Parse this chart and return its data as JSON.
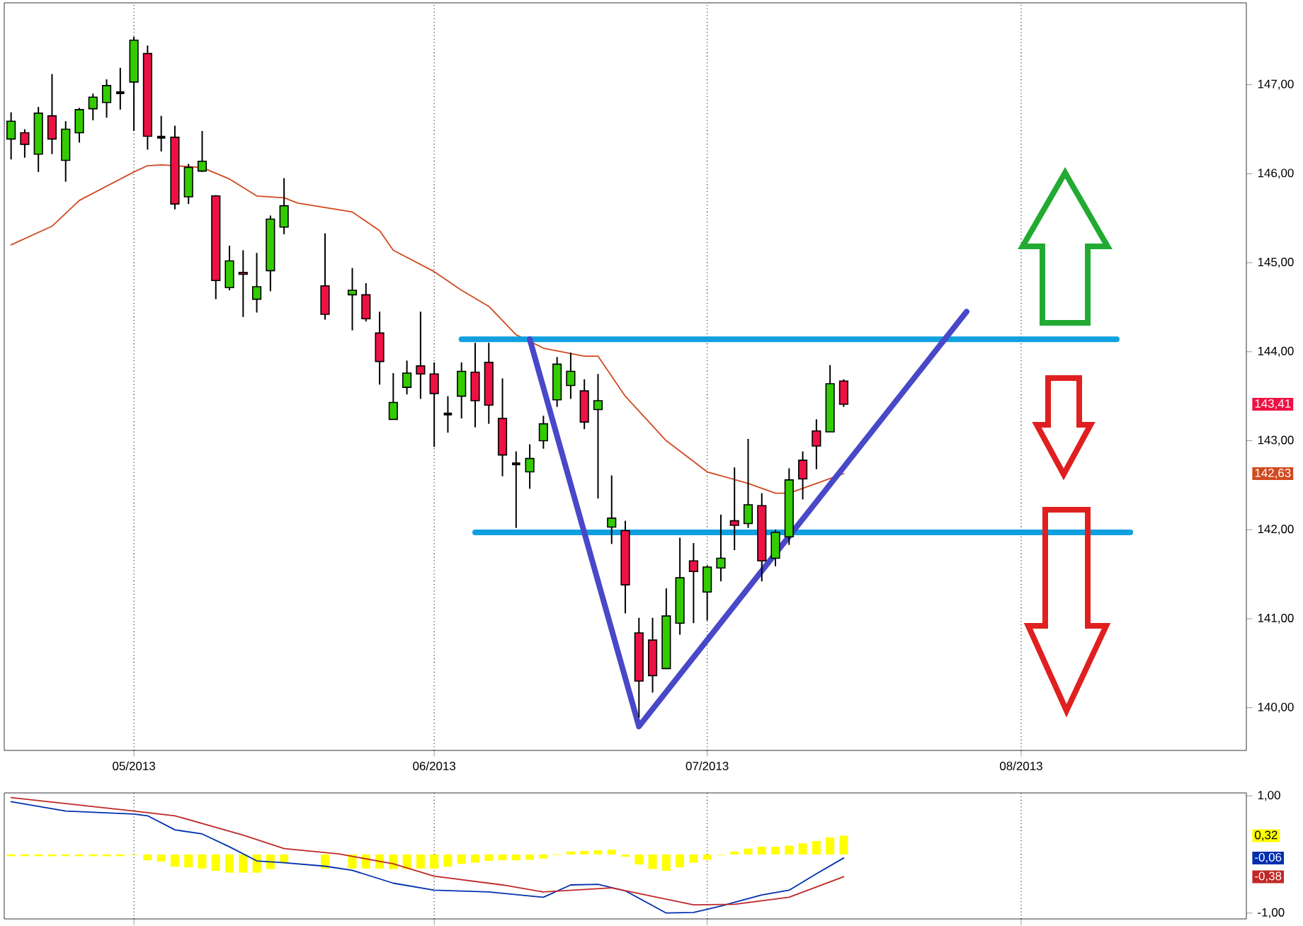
{
  "chart_data": [
    {
      "type": "candlestick",
      "grid": "x",
      "categories": [
        null,
        null,
        null,
        null,
        null,
        null,
        null,
        null,
        null,
        "05/2013",
        null,
        null,
        null,
        null,
        null,
        null,
        null,
        null,
        null,
        null,
        null,
        null,
        null,
        null,
        null,
        null,
        null,
        null,
        null,
        null,
        null,
        "06/2013",
        null,
        null,
        null,
        null,
        null,
        null,
        null,
        null,
        null,
        null,
        null,
        null,
        null,
        null,
        null,
        null,
        null,
        null,
        null,
        "07/2013",
        null,
        null,
        null,
        null,
        null,
        null,
        null,
        null,
        null,
        null,
        null,
        null,
        null,
        null,
        null,
        null,
        null,
        null,
        null,
        null,
        null,
        null,
        "08/2013",
        null,
        null,
        null,
        null,
        null,
        null,
        null,
        null,
        null,
        null,
        null,
        null,
        null,
        null,
        null,
        null
      ],
      "ohlc": [
        [
          146.39,
          146.69,
          146.16,
          146.59
        ],
        [
          146.46,
          146.5,
          146.18,
          146.33
        ],
        [
          146.22,
          146.75,
          146.02,
          146.68
        ],
        [
          146.65,
          147.12,
          146.22,
          146.39
        ],
        [
          146.15,
          146.59,
          145.91,
          146.5
        ],
        [
          146.46,
          146.74,
          146.35,
          146.72
        ],
        [
          146.73,
          146.9,
          146.6,
          146.86
        ],
        [
          146.8,
          147.06,
          146.63,
          146.99
        ],
        [
          146.91,
          147.19,
          146.72,
          146.91
        ],
        [
          147.03,
          147.54,
          146.48,
          147.5
        ],
        [
          147.35,
          147.44,
          146.27,
          146.42
        ],
        [
          146.41,
          146.65,
          146.25,
          146.41
        ],
        [
          146.41,
          146.54,
          145.6,
          145.66
        ],
        [
          145.74,
          146.11,
          145.66,
          146.07
        ],
        [
          146.03,
          146.48,
          146.02,
          146.14
        ],
        [
          145.75,
          145.76,
          144.59,
          144.8
        ],
        [
          144.72,
          145.19,
          144.69,
          145.02
        ],
        [
          144.89,
          145.14,
          144.39,
          144.87
        ],
        [
          144.59,
          145.11,
          144.44,
          144.73
        ],
        [
          144.91,
          145.53,
          144.68,
          145.49
        ],
        [
          145.4,
          145.95,
          145.32,
          145.64
        ],
        null,
        null,
        [
          144.74,
          145.33,
          144.36,
          144.42
        ],
        null,
        [
          144.64,
          144.94,
          144.24,
          144.69
        ],
        [
          144.64,
          144.77,
          144.34,
          144.37
        ],
        [
          144.21,
          144.45,
          143.63,
          143.89
        ],
        [
          143.24,
          143.76,
          143.24,
          143.43
        ],
        [
          143.6,
          143.9,
          143.52,
          143.76
        ],
        [
          143.84,
          144.45,
          143.47,
          143.75
        ],
        [
          143.75,
          143.88,
          142.93,
          143.53
        ],
        [
          143.3,
          143.5,
          143.09,
          143.3
        ],
        [
          143.5,
          143.88,
          143.25,
          143.78
        ],
        [
          143.77,
          144.1,
          143.15,
          143.45
        ],
        [
          143.88,
          144.1,
          143.19,
          143.4
        ],
        [
          143.25,
          143.7,
          142.6,
          142.84
        ],
        [
          142.74,
          142.88,
          142.02,
          142.74
        ],
        [
          142.65,
          142.96,
          142.46,
          142.8
        ],
        [
          143.0,
          143.28,
          142.91,
          143.19
        ],
        [
          143.46,
          143.94,
          143.38,
          143.86
        ],
        [
          143.62,
          143.99,
          143.47,
          143.78
        ],
        [
          143.56,
          143.69,
          143.13,
          143.21
        ],
        [
          143.35,
          143.75,
          142.35,
          143.45
        ],
        [
          142.03,
          142.61,
          141.84,
          142.13
        ],
        [
          141.99,
          142.1,
          141.06,
          141.38
        ],
        [
          140.84,
          141.01,
          139.89,
          140.3
        ],
        [
          140.76,
          141.01,
          140.17,
          140.36
        ],
        [
          140.44,
          141.34,
          140.44,
          141.03
        ],
        [
          140.95,
          141.91,
          140.82,
          141.46
        ],
        [
          141.65,
          141.85,
          140.95,
          141.53
        ],
        [
          141.3,
          141.6,
          140.98,
          141.58
        ],
        [
          141.57,
          142.17,
          141.42,
          141.68
        ],
        [
          142.1,
          142.7,
          141.77,
          142.05
        ],
        [
          142.07,
          143.02,
          142.02,
          142.28
        ],
        [
          142.27,
          142.41,
          141.42,
          141.65
        ],
        [
          141.68,
          142.0,
          141.59,
          141.97
        ],
        [
          141.92,
          142.69,
          141.83,
          142.56
        ],
        [
          142.78,
          142.88,
          142.34,
          142.57
        ],
        [
          143.11,
          143.24,
          142.68,
          142.94
        ],
        [
          143.1,
          143.85,
          143.1,
          143.64
        ],
        [
          143.67,
          143.69,
          143.38,
          143.41
        ],
        null,
        null,
        null,
        null,
        null,
        null,
        null,
        null,
        null,
        null,
        null,
        null,
        null,
        null,
        null,
        null,
        null,
        null,
        null,
        null,
        null,
        null,
        null,
        null,
        null,
        null,
        null,
        null,
        null
      ],
      "colors": [
        "#33cc00",
        "#ee1144",
        "#33cc00",
        "#ee1144",
        "#33cc00",
        "#33cc00",
        "#33cc00",
        "#33cc00",
        "#000000",
        "#33cc00",
        "#ee1144",
        "#000000",
        "#ee1144",
        "#33cc00",
        "#33cc00",
        "#ee1144",
        "#33cc00",
        "#ee1144",
        "#33cc00",
        "#33cc00",
        "#33cc00",
        null,
        null,
        "#ee1144",
        null,
        "#33cc00",
        "#ee1144",
        "#ee1144",
        "#33cc00",
        "#33cc00",
        "#ee1144",
        "#ee1144",
        "#000000",
        "#33cc00",
        "#ee1144",
        "#ee1144",
        "#ee1144",
        "#000000",
        "#33cc00",
        "#33cc00",
        "#33cc00",
        "#33cc00",
        "#ee1144",
        "#33cc00",
        "#33cc00",
        "#ee1144",
        "#ee1144",
        "#ee1144",
        "#33cc00",
        "#33cc00",
        "#ee1144",
        "#33cc00",
        "#33cc00",
        "#ee1144",
        "#33cc00",
        "#ee1144",
        "#33cc00",
        "#33cc00",
        "#ee1144",
        "#ee1144",
        "#33cc00",
        "#ee1144",
        null,
        null,
        null,
        null,
        null,
        null,
        null,
        null,
        null,
        null,
        null,
        null,
        null,
        null,
        null,
        null,
        null,
        null,
        null,
        null,
        null,
        null,
        null,
        null,
        null,
        null,
        null,
        null,
        null
      ],
      "series": [
        {
          "type": "line",
          "color": "#d04a20",
          "values": [
            145.2,
            null,
            null,
            145.41,
            null,
            145.7,
            null,
            null,
            null,
            146.02,
            146.09,
            146.1,
            null,
            null,
            146.07,
            null,
            145.94,
            null,
            145.75,
            null,
            145.73,
            145.67,
            null,
            null,
            null,
            145.57,
            null,
            145.36,
            145.14,
            null,
            null,
            144.9,
            null,
            144.69,
            null,
            144.51,
            null,
            144.19,
            null,
            144.04,
            null,
            null,
            143.95,
            143.95,
            null,
            143.5,
            null,
            null,
            143.0,
            null,
            null,
            142.65,
            null,
            null,
            142.52,
            null,
            142.41,
            142.41,
            null,
            142.52,
            null,
            142.63,
            null,
            null,
            null,
            null,
            null,
            null,
            null,
            null,
            null,
            null,
            null,
            null,
            null,
            null,
            null,
            null,
            null,
            null,
            null,
            null,
            null,
            null,
            null,
            null,
            null,
            null,
            null,
            null,
            null
          ]
        },
        {
          "type": "line",
          "color": "#10a0e0",
          "values": [
            null,
            null,
            null,
            null,
            null,
            null,
            null,
            null,
            null,
            null,
            null,
            null,
            null,
            null,
            null,
            null,
            null,
            null,
            null,
            null,
            null,
            null,
            null,
            null,
            null,
            null,
            null,
            null,
            null,
            null,
            null,
            null,
            null,
            144.14,
            null,
            null,
            null,
            null,
            null,
            null,
            null,
            null,
            null,
            null,
            null,
            null,
            null,
            null,
            null,
            null,
            null,
            null,
            null,
            null,
            null,
            null,
            null,
            null,
            null,
            null,
            null,
            null,
            null,
            null,
            null,
            null,
            null,
            null,
            null,
            null,
            null,
            null,
            null,
            null,
            null,
            null,
            null,
            null,
            null,
            null,
            null,
            144.14,
            null,
            null,
            null,
            null,
            null,
            null,
            null,
            null,
            null
          ]
        },
        {
          "type": "line",
          "color": "#10a0e0",
          "values": [
            null,
            null,
            null,
            null,
            null,
            null,
            null,
            null,
            null,
            null,
            null,
            null,
            null,
            null,
            null,
            null,
            null,
            null,
            null,
            null,
            null,
            null,
            null,
            null,
            null,
            null,
            null,
            null,
            null,
            null,
            null,
            null,
            null,
            null,
            141.97,
            null,
            null,
            null,
            null,
            null,
            null,
            null,
            null,
            null,
            null,
            null,
            null,
            null,
            null,
            null,
            null,
            null,
            null,
            null,
            null,
            null,
            null,
            null,
            null,
            null,
            null,
            null,
            null,
            null,
            null,
            null,
            null,
            null,
            null,
            null,
            null,
            null,
            null,
            null,
            null,
            null,
            null,
            null,
            null,
            null,
            null,
            null,
            141.97,
            null,
            null,
            null,
            null,
            null,
            null,
            null,
            null
          ]
        },
        {
          "type": "line",
          "color": "#4848c8",
          "values": [
            null,
            null,
            null,
            null,
            null,
            null,
            null,
            null,
            null,
            null,
            null,
            null,
            null,
            null,
            null,
            null,
            null,
            null,
            null,
            null,
            null,
            null,
            null,
            null,
            null,
            null,
            null,
            null,
            null,
            null,
            null,
            null,
            null,
            null,
            null,
            null,
            null,
            null,
            144.14,
            null,
            null,
            null,
            null,
            null,
            null,
            null,
            139.79,
            null,
            null,
            null,
            null,
            null,
            null,
            null,
            null,
            null,
            null,
            null,
            null,
            null,
            null,
            null,
            null,
            null,
            null,
            null,
            null,
            null,
            null,
            null,
            144.45,
            null,
            null,
            null,
            null,
            null,
            null,
            null,
            null,
            null,
            null,
            null,
            null,
            null,
            null,
            null,
            null,
            null,
            null,
            null,
            null
          ]
        }
      ],
      "ylim": [
        139.52,
        147.92
      ],
      "yticks": [
        {
          "value": 140,
          "label": "140,00"
        },
        {
          "value": 141,
          "label": "141,00"
        },
        {
          "value": 142,
          "label": "142,00"
        },
        {
          "value": 143,
          "label": "143,00"
        },
        {
          "value": 144,
          "label": "144,00"
        },
        {
          "value": 145,
          "label": "145,00"
        },
        {
          "value": 146,
          "label": "146,00"
        },
        {
          "value": 147,
          "label": "147,00"
        }
      ],
      "annotations": [
        "143,41",
        "142,63"
      ]
    },
    {
      "type": "line",
      "grid": "x",
      "tick_labels": "y",
      "categories": [
        null,
        null,
        null,
        null,
        null,
        null,
        null,
        null,
        null,
        null,
        null,
        null,
        null,
        null,
        null,
        null,
        null,
        null,
        null,
        null,
        null,
        null,
        null,
        null,
        null,
        null,
        null,
        null,
        null,
        null,
        null,
        null,
        null,
        null,
        null,
        null,
        null,
        null,
        null,
        null,
        null,
        null,
        null,
        null,
        null,
        null,
        null,
        null,
        null,
        null,
        null,
        null,
        null,
        null,
        null,
        null,
        null,
        null,
        null,
        null,
        null,
        null,
        null,
        null,
        null,
        null,
        null,
        null,
        null,
        null,
        null,
        null,
        null,
        null,
        null,
        null,
        null,
        null,
        null,
        null,
        null,
        null,
        null,
        null,
        null,
        null,
        null,
        null,
        null,
        null,
        null
      ],
      "series": [
        {
          "type": "bar",
          "color": "#ffff00",
          "values": [
            -0.03,
            -0.03,
            -0.03,
            -0.03,
            -0.03,
            -0.03,
            -0.03,
            -0.03,
            -0.03,
            -0.01,
            -0.1,
            -0.12,
            -0.21,
            -0.22,
            -0.24,
            -0.28,
            -0.31,
            -0.31,
            -0.31,
            -0.25,
            -0.14,
            null,
            null,
            -0.24,
            null,
            -0.24,
            -0.24,
            -0.24,
            -0.25,
            -0.25,
            -0.24,
            -0.24,
            -0.21,
            -0.16,
            -0.14,
            -0.11,
            -0.1,
            -0.1,
            -0.09,
            -0.07,
            -0.01,
            0.05,
            0.06,
            0.07,
            0.08,
            -0.04,
            -0.17,
            -0.25,
            -0.28,
            -0.22,
            -0.14,
            -0.09,
            -0.01,
            0.05,
            0.1,
            0.13,
            0.13,
            0.15,
            0.19,
            0.23,
            0.29,
            0.32,
            null,
            null,
            null,
            null,
            null,
            null,
            null,
            null,
            null,
            null,
            null,
            null,
            null,
            null,
            null,
            null,
            null,
            null,
            null,
            null,
            null,
            null,
            null,
            null,
            null,
            null,
            null,
            null,
            null
          ]
        },
        {
          "type": "line",
          "color": "#0030b0",
          "values": [
            0.9,
            null,
            null,
            null,
            0.74,
            null,
            null,
            null,
            null,
            0.69,
            0.66,
            null,
            0.42,
            null,
            0.35,
            null,
            0.13,
            null,
            -0.11,
            null,
            -0.14,
            null,
            null,
            -0.2,
            null,
            -0.27,
            null,
            null,
            -0.49,
            null,
            null,
            -0.61,
            null,
            null,
            null,
            -0.64,
            null,
            null,
            null,
            -0.73,
            null,
            -0.52,
            null,
            -0.51,
            null,
            -0.62,
            null,
            null,
            -1.0,
            null,
            -0.99,
            null,
            -0.88,
            null,
            null,
            -0.69,
            null,
            -0.61,
            null,
            -0.33,
            null,
            -0.06,
            null,
            null,
            null,
            null,
            null,
            null,
            null,
            null,
            null,
            null,
            null,
            null,
            null,
            null,
            null,
            null,
            null,
            null,
            null,
            null,
            null,
            null,
            null,
            null,
            null,
            null,
            null,
            null,
            null
          ]
        },
        {
          "type": "line",
          "color": "#c02828",
          "values": [
            0.97,
            null,
            null,
            null,
            null,
            null,
            null,
            null,
            null,
            0.74,
            null,
            null,
            0.66,
            null,
            null,
            null,
            null,
            0.33,
            null,
            null,
            0.1,
            null,
            null,
            null,
            0.01,
            null,
            null,
            null,
            -0.16,
            null,
            null,
            -0.37,
            null,
            null,
            null,
            null,
            -0.52,
            null,
            null,
            -0.64,
            null,
            null,
            null,
            null,
            -0.57,
            null,
            null,
            null,
            null,
            null,
            -0.86,
            null,
            null,
            -0.85,
            null,
            null,
            null,
            -0.73,
            null,
            null,
            null,
            -0.38,
            null,
            null,
            null,
            null,
            null,
            null,
            null,
            null,
            null,
            null,
            null,
            null,
            null,
            null,
            null,
            null,
            null,
            null,
            null,
            null,
            null,
            null,
            null,
            null,
            null,
            null,
            null,
            null,
            null
          ]
        }
      ],
      "ylim": [
        -1.1,
        1.05
      ],
      "yticks": [
        {
          "value": 1,
          "label": "1,00"
        },
        {
          "value": -1,
          "label": "-1,00"
        }
      ],
      "annotations": [
        "0,32",
        "-0,06",
        "-0,38"
      ]
    }
  ]
}
